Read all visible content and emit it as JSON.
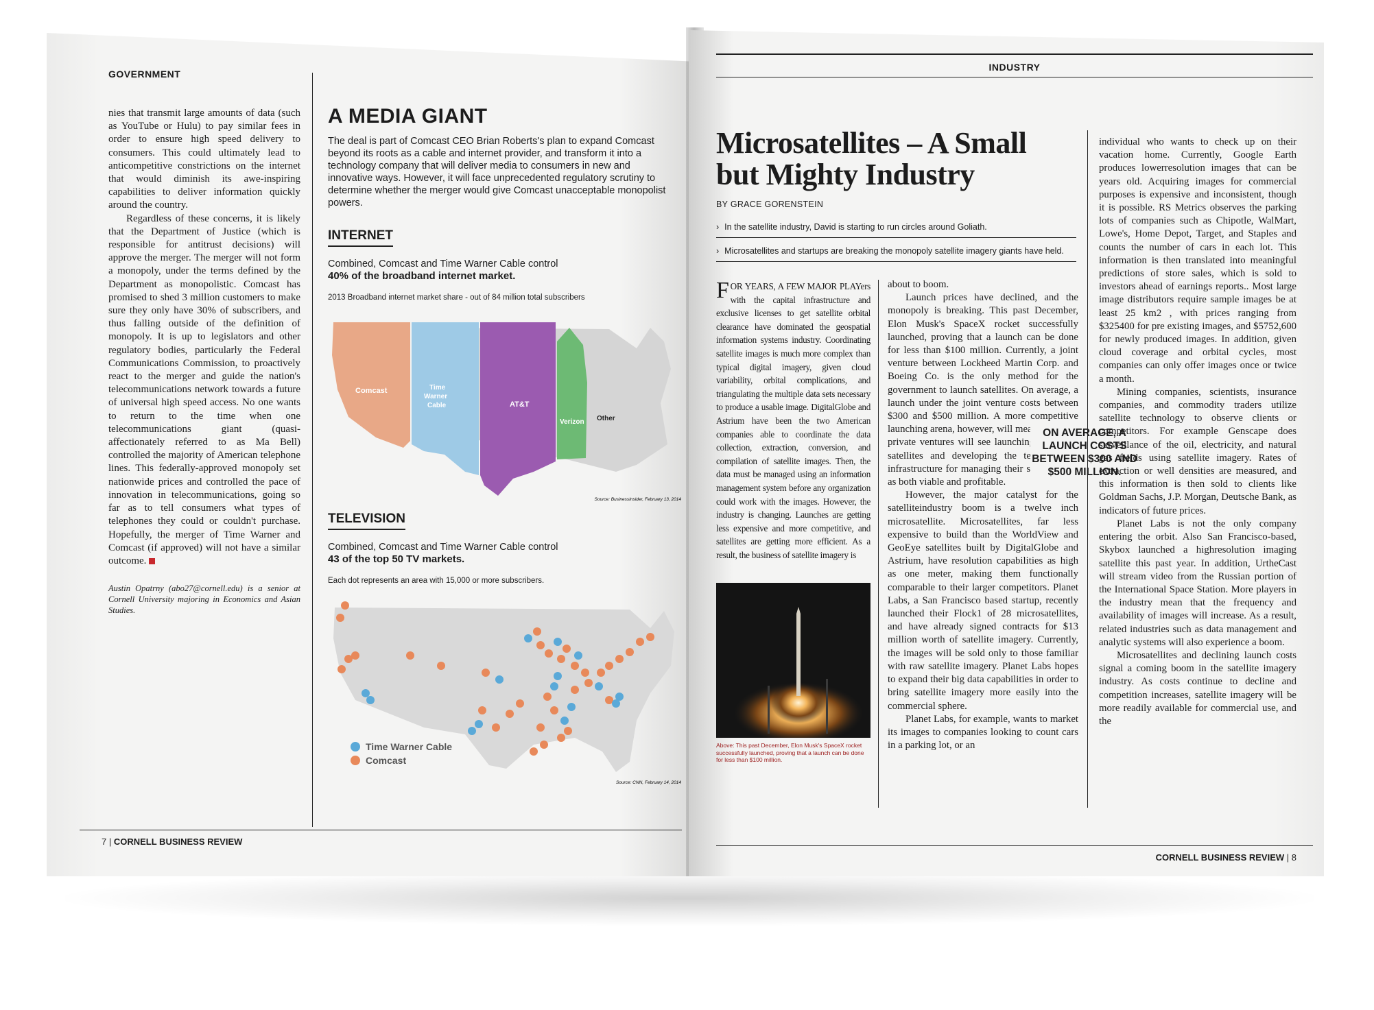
{
  "left_page": {
    "section": "GOVERNMENT",
    "body_paragraphs": [
      "nies that transmit large amounts of data (such as YouTube or Hulu) to pay similar fees in order to ensure high speed delivery to consumers. This could ultimately lead to anticompetitive constrictions on the internet that would diminish its awe-inspiring capabilities to deliver information quickly around the country.",
      "Regardless of these concerns, it is likely that the Department of Justice (which is responsible for antitrust decisions) will approve the merger. The merger will not form a monopoly, under the terms defined by the Department as monopolistic. Comcast has promised to shed 3 million customers to make sure they only have 30% of subscribers, and thus falling outside of the definition of monopoly. It is up to legislators and other regulatory bodies, particularly the Federal Communications Commission, to proactively react to the merger and guide the nation's telecommunications network towards a future of universal high speed access. No one wants to return to the time when one telecommunications giant (quasi-affectionately referred to as Ma Bell) controlled the majority of American telephone lines. This federally-approved monopoly set nationwide prices and controlled the pace of innovation in telecommunications, going so far as to tell consumers what types of telephones they could or couldn't purchase. Hopefully, the merger of Time Warner and Comcast (if approved) will not have a similar outcome."
    ],
    "author_bio": "Austin Opatrny (abo27@cornell.edu) is a senior at Cornell University majoring in Economics and Asian Studies.",
    "folio_number": "7",
    "folio_title": "CORNELL BUSINESS REVIEW",
    "sidebar": {
      "title": "A MEDIA GIANT",
      "intro": "The deal is part of Comcast CEO Brian Roberts's plan to expand Comcast beyond its roots as a cable and internet provider, and transform it into a technology company that will deliver media to consumers in new and innovative ways. However, it will face unprecedented regulatory scrutiny to determine whether the merger would give Comcast unacceptable monopolist powers.",
      "internet": {
        "heading": "INTERNET",
        "line1": "Combined, Comcast and Time Warner Cable control",
        "line2": "40% of the broadband internet market.",
        "caption": "2013 Broadband internet market share - out of 84 million total subscribers",
        "regions": [
          {
            "label": "Comcast",
            "color": "#e8a887"
          },
          {
            "label": "Time Warner Cable",
            "color": "#9ecae6"
          },
          {
            "label": "AT&T",
            "color": "#9b5bb0"
          },
          {
            "label": "Verizon",
            "color": "#6dba74"
          },
          {
            "label": "Other",
            "color": "#d5d5d5"
          }
        ],
        "source": "Source: BusinessInsider, February 13, 2014"
      },
      "television": {
        "heading": "TELEVISION",
        "line1": "Combined, Comcast and Time Warner Cable control",
        "line2": "43 of the top 50 TV markets.",
        "caption": "Each dot represents an area with 15,000 or more subscribers.",
        "legend": [
          {
            "label": "Time Warner Cable",
            "color": "#5aa9d8"
          },
          {
            "label": "Comcast",
            "color": "#e8895a"
          }
        ],
        "source": "Source: CNN, February 14, 2014"
      }
    }
  },
  "right_page": {
    "section": "INDUSTRY",
    "headline": "Microsatellites – A Small but Mighty Industry",
    "byline": "BY GRACE GORENSTEIN",
    "deck": [
      "In the satellite industry, David is starting to run circles around Goliath.",
      "Microsatellites and startups are breaking the monopoly satellite imagery giants have held."
    ],
    "col1_dropcap": "F",
    "col1_text": "OR YEARS, A FEW MAJOR PLAYers with the capital infrastructure and exclusive licenses to get satellite orbital clearance have dominated the geospatial information systems industry. Coordinating satellite images is much more complex than typical digital imagery, given cloud variability, orbital complications, and triangulating the multiple data sets necessary to produce a usable image. DigitalGlobe and Astrium have been the two American companies able to coordinate the data collection, extraction, conversion, and compilation of satellite images. Then, the data must be managed using an information management system before any organization could work with the images. However, the industry is changing. Launches are getting less expensive and more competitive, and satellites are getting more efficient. As a result, the business of satellite imagery is",
    "photo_caption": "Above: This past December, Elon Musk's SpaceX rocket successfully launched, proving that a launch can be done for less than $100 million.",
    "col2_paragraphs": [
      "about to boom.",
      "Launch prices have declined, and the monopoly is breaking. This past December, Elon Musk's SpaceX rocket successfully launched, proving that a launch can be done for less than $100 million. Currently, a joint venture between Lockheed Martin Corp. and Boeing Co. is the only method for the government to launch satellites. On average, a launch under the joint venture costs between $300 and $500 million. A more competitive launching arena, however, will mean that more private ventures will see launching their own satellites and developing the technological infrastructure for managing their satellite data as both viable and profitable.",
      "However, the major catalyst for the satelliteindustry boom is a twelve inch microsatellite. Microsatellites, far less expensive to build than the WorldView and GeoEye satellites built by DigitalGlobe and Astrium, have resolution capabilities as high as one meter, making them functionally comparable to their larger competitors. Planet Labs, a San Francisco based startup, recently launched their Flock1 of 28 microsatellites, and have already signed contracts for $13 million worth of satellite imagery. Currently, the images will be sold only to those familiar with raw satellite imagery. Planet Labs hopes to expand their big data capabilities in order to bring satellite imagery more easily into the commercial sphere.",
      "Planet Labs, for example, wants to market its images to companies looking to count cars in a parking lot, or an"
    ],
    "pull_quote": "ON AVERAGE, A LAUNCH COSTS BETWEEN $300 AND $500 MILLION.",
    "col3_paragraphs": [
      "individual who wants to check up on their vacation home. Currently, Google Earth produces lowerresolution images that can be years old. Acquiring images for commercial purposes is expensive and inconsistent, though it is possible. RS Metrics observes the parking lots of companies such as Chipotle, WalMart, Lowe's, Home Depot, Target, and Staples and counts the number of cars in each lot. This information is then translated into meaningful predictions of store sales, which is sold to investors ahead of earnings reports.. Most large image distributors require sample images be at least 25 km2 , with prices ranging from $325400 for pre existing images, and $5752,600 for newly produced images. In addition, given cloud coverage and orbital cycles, most companies can only offer images once or twice a month.",
      "Mining companies, scientists, insurance companies, and commodity traders utilize satellite technology to observe clients or competitors. For example Genscape does surveillance of the oil, electricity, and natural gas fields using satellite imagery. Rates of extraction or well densities are measured, and this information is then sold to clients like Goldman Sachs, J.P. Morgan, Deutsche Bank, as indicators of future prices.",
      "Planet Labs is not the only company entering the orbit. Also San Francisco-based, Skybox launched a highresolution imaging satellite this past year. In addition, UrtheCast will stream video from the Russian portion of the International Space Station. More players in the industry mean that the frequency and availability of images will increase. As a result, related industries such as data management and analytic systems will also experience a boom.",
      "Microsatellites and declining launch costs signal a coming boom in the satellite imagery industry. As costs continue to decline and competition increases, satellite imagery will be more readily available for commercial use, and the"
    ],
    "folio_title": "CORNELL BUSINESS REVIEW",
    "folio_number": "8"
  }
}
